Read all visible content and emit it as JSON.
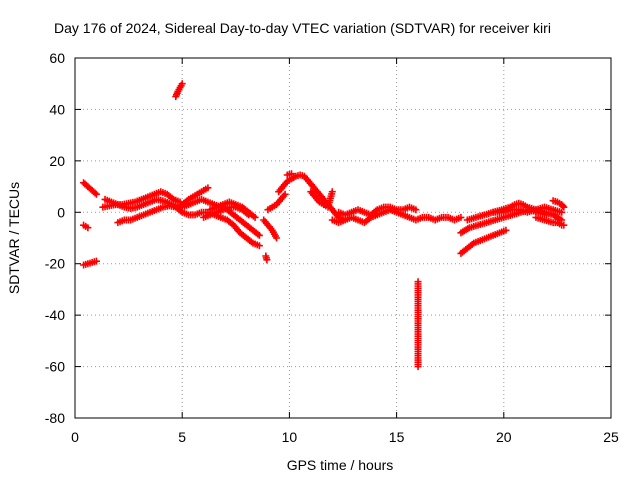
{
  "chart_data": {
    "type": "scatter",
    "title": "Day 176 of 2024, Sidereal Day-to-day VTEC variation (SDTVAR) for receiver kiri",
    "xlabel": "GPS time / hours",
    "ylabel": "SDTVAR / TECUs",
    "xlim": [
      0,
      25
    ],
    "ylim": [
      -80,
      60
    ],
    "xticks": [
      0,
      5,
      10,
      15,
      20,
      25
    ],
    "yticks": [
      -80,
      -60,
      -40,
      -20,
      0,
      20,
      40,
      60
    ],
    "grid": true,
    "marker": "+",
    "color": "#ff0000",
    "segments": [
      {
        "x": [
          0.4,
          0.5,
          0.6
        ],
        "y": [
          -5,
          -5.5,
          -6
        ]
      },
      {
        "x": [
          0.4,
          0.6,
          0.8,
          1.0
        ],
        "y": [
          -20.5,
          -20,
          -19.5,
          -19
        ]
      },
      {
        "x": [
          0.4,
          0.6,
          0.8,
          1.0
        ],
        "y": [
          11.5,
          10,
          8.5,
          7
        ]
      },
      {
        "x": [
          1.4,
          1.7,
          2.0,
          2.3,
          2.6,
          2.9,
          3.2,
          3.5,
          3.8,
          4.1,
          4.4,
          4.7,
          5.0,
          5.3,
          5.6,
          5.9,
          6.2,
          6.5,
          6.8,
          7.1,
          7.4,
          7.7,
          8.0,
          8.3,
          8.6
        ],
        "y": [
          5,
          4,
          3,
          2,
          1.5,
          2,
          3,
          4,
          5,
          4.5,
          3.5,
          2.5,
          2,
          3,
          4,
          5,
          4,
          3,
          2,
          1,
          -1,
          -3,
          -5,
          -7,
          -9
        ]
      },
      {
        "x": [
          1.3,
          1.6,
          1.9,
          2.2,
          2.5,
          2.8,
          3.1,
          3.4,
          3.7,
          4.0,
          4.3,
          4.6,
          4.9
        ],
        "y": [
          2,
          2.5,
          3,
          3,
          3.5,
          4,
          5,
          6,
          7,
          8,
          7,
          5,
          4
        ]
      },
      {
        "x": [
          2.0,
          2.3,
          2.6,
          2.9,
          3.2,
          3.5,
          3.8,
          4.1,
          4.4,
          4.7,
          5.0,
          5.3,
          5.6,
          5.9,
          6.2,
          6.5,
          6.8,
          7.1,
          7.4,
          7.7,
          8.0,
          8.3,
          8.6
        ],
        "y": [
          -4,
          -3,
          -3,
          -2,
          -1,
          0,
          1,
          2,
          2.5,
          2,
          0,
          -1,
          -1,
          0,
          0,
          -1,
          -2,
          -3,
          -5,
          -8,
          -10,
          -12,
          -13
        ]
      },
      {
        "x": [
          4.7,
          4.8,
          4.9,
          5.0
        ],
        "y": [
          45,
          47,
          48.5,
          50
        ]
      },
      {
        "x": [
          5.0,
          5.3,
          5.6,
          5.9,
          6.2
        ],
        "y": [
          3,
          5,
          6.5,
          8,
          9.5
        ]
      },
      {
        "x": [
          6.0,
          6.3,
          6.6,
          6.9,
          7.2,
          7.5,
          7.8,
          8.1
        ],
        "y": [
          -2,
          -1,
          0,
          1,
          2,
          2,
          1,
          -1
        ]
      },
      {
        "x": [
          6.3,
          6.6,
          6.9,
          7.2,
          7.5,
          7.8,
          8.1,
          8.4
        ],
        "y": [
          1,
          2,
          3,
          4,
          3,
          2,
          0,
          -2
        ]
      },
      {
        "x": [
          8.9,
          8.95
        ],
        "y": [
          -17,
          -18.5
        ]
      },
      {
        "x": [
          8.8,
          9.0,
          9.2,
          9.4
        ],
        "y": [
          -3,
          -5,
          -7,
          -10
        ]
      },
      {
        "x": [
          9.0,
          9.2,
          9.4,
          9.6,
          9.8
        ],
        "y": [
          1,
          2,
          3,
          5,
          7
        ]
      },
      {
        "x": [
          9.5,
          9.7,
          9.9,
          10.1,
          10.3,
          10.5,
          10.7,
          10.9,
          11.1,
          11.3,
          11.5,
          11.7,
          11.9,
          12.1,
          12.3,
          12.5
        ],
        "y": [
          8,
          10,
          12,
          13,
          14,
          14.5,
          14,
          12,
          10,
          8,
          6,
          4,
          2,
          0,
          -2,
          -3
        ]
      },
      {
        "x": [
          9.9,
          10.1
        ],
        "y": [
          14.5,
          15
        ]
      },
      {
        "x": [
          11.0,
          11.2,
          11.4,
          11.6,
          11.8,
          12.0
        ],
        "y": [
          8,
          6,
          4,
          3,
          2,
          8
        ]
      },
      {
        "x": [
          12.0,
          12.3,
          12.6,
          12.9,
          13.2,
          13.5,
          13.8,
          14.1,
          14.4,
          14.7,
          15.0,
          15.3,
          15.6,
          15.9,
          16.2,
          16.5,
          16.8,
          17.1,
          17.4,
          17.7,
          18.0
        ],
        "y": [
          -3,
          -4,
          -3,
          -2,
          -3,
          -4,
          -2,
          -1,
          0,
          1,
          0,
          -1,
          -2,
          -3,
          -2,
          -2,
          -3,
          -2,
          -2,
          -3,
          -2
        ]
      },
      {
        "x": [
          12.3,
          12.6,
          12.9,
          13.2,
          13.5,
          13.8,
          14.1,
          14.4,
          14.7,
          15.0,
          15.3,
          15.6,
          15.9
        ],
        "y": [
          0,
          -1,
          0,
          1,
          0,
          -1,
          1,
          2,
          2,
          1,
          1,
          2,
          1
        ]
      },
      {
        "x": [
          16.0,
          16.0,
          16.0
        ],
        "y": [
          -27,
          -33,
          -60
        ]
      },
      {
        "x": [
          18.0,
          18.3,
          18.6,
          18.9,
          19.2,
          19.5,
          19.8,
          20.1
        ],
        "y": [
          -16,
          -14,
          -12,
          -11,
          -10,
          -9,
          -8,
          -7
        ]
      },
      {
        "x": [
          18.0,
          18.4,
          18.8,
          19.2,
          19.6,
          20.0,
          20.4,
          20.8,
          21.2,
          21.6,
          22.0
        ],
        "y": [
          -8,
          -6,
          -5,
          -4,
          -3,
          -2,
          -1,
          0,
          1,
          0,
          -1
        ]
      },
      {
        "x": [
          18.3,
          18.7,
          19.1,
          19.5,
          19.9,
          20.3,
          20.7,
          21.1,
          21.5,
          21.9,
          22.3,
          22.7
        ],
        "y": [
          -3,
          -2,
          -1,
          0,
          0,
          1,
          1,
          0,
          1,
          2,
          1,
          0
        ]
      },
      {
        "x": [
          19.5,
          19.9,
          20.3,
          20.5,
          20.7,
          20.9,
          21.1,
          21.5,
          21.9,
          22.3,
          22.7
        ],
        "y": [
          0,
          1,
          2,
          3,
          3.5,
          3,
          2,
          1,
          0,
          -1,
          -3
        ]
      },
      {
        "x": [
          21.5,
          21.9,
          22.3,
          22.5,
          22.7,
          22.8
        ],
        "y": [
          -2,
          -3,
          -4,
          -4,
          -5,
          -5
        ]
      },
      {
        "x": [
          22.3,
          22.5,
          22.7,
          22.8
        ],
        "y": [
          4.5,
          4,
          3,
          2
        ]
      }
    ]
  }
}
